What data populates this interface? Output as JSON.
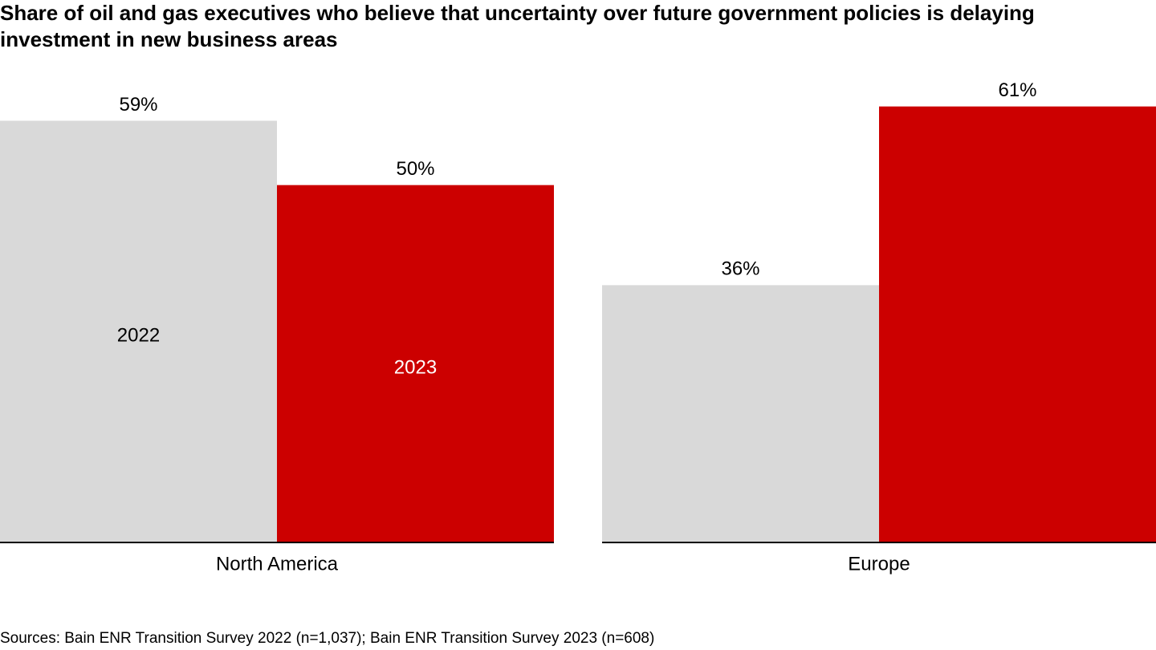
{
  "chart_data": {
    "type": "bar",
    "title": "Share of oil and gas executives who believe that uncertainty over future government policies is delaying investment in new business areas",
    "categories": [
      "North America",
      "Europe"
    ],
    "series": [
      {
        "name": "2022",
        "color": "#d9d9d9",
        "values": [
          59,
          36
        ],
        "value_labels": [
          "59%",
          "36%"
        ]
      },
      {
        "name": "2023",
        "color": "#cc0000",
        "values": [
          50,
          61
        ],
        "value_labels": [
          "50%",
          "61%"
        ]
      }
    ],
    "ylim": [
      0,
      70
    ],
    "source": "Sources: Bain ENR Transition Survey 2022 (n=1,037); Bain ENR Transition Survey 2023 (n=608)"
  }
}
